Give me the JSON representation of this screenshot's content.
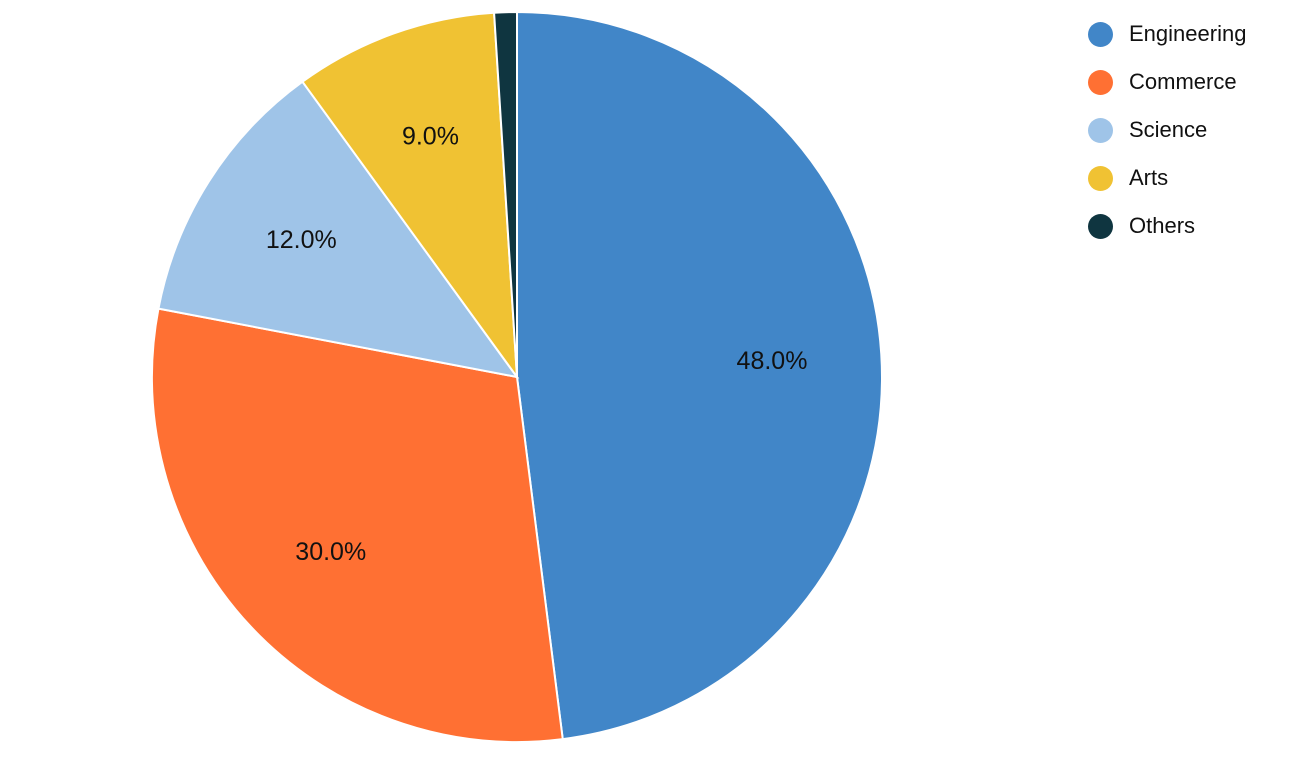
{
  "chart_data": {
    "type": "pie",
    "categories": [
      "Engineering",
      "Commerce",
      "Science",
      "Arts",
      "Others"
    ],
    "values": [
      48.0,
      30.0,
      12.0,
      9.0,
      1.0
    ],
    "unit": "%",
    "slice_labels": [
      "48.0%",
      "30.0%",
      "12.0%",
      "9.0%",
      ""
    ],
    "colors": [
      "#4186c8",
      "#ff7033",
      "#9fc4e8",
      "#f0c233",
      "#0f3540"
    ],
    "start": "12 o'clock",
    "direction": "clockwise",
    "legend_position": "top-right"
  }
}
